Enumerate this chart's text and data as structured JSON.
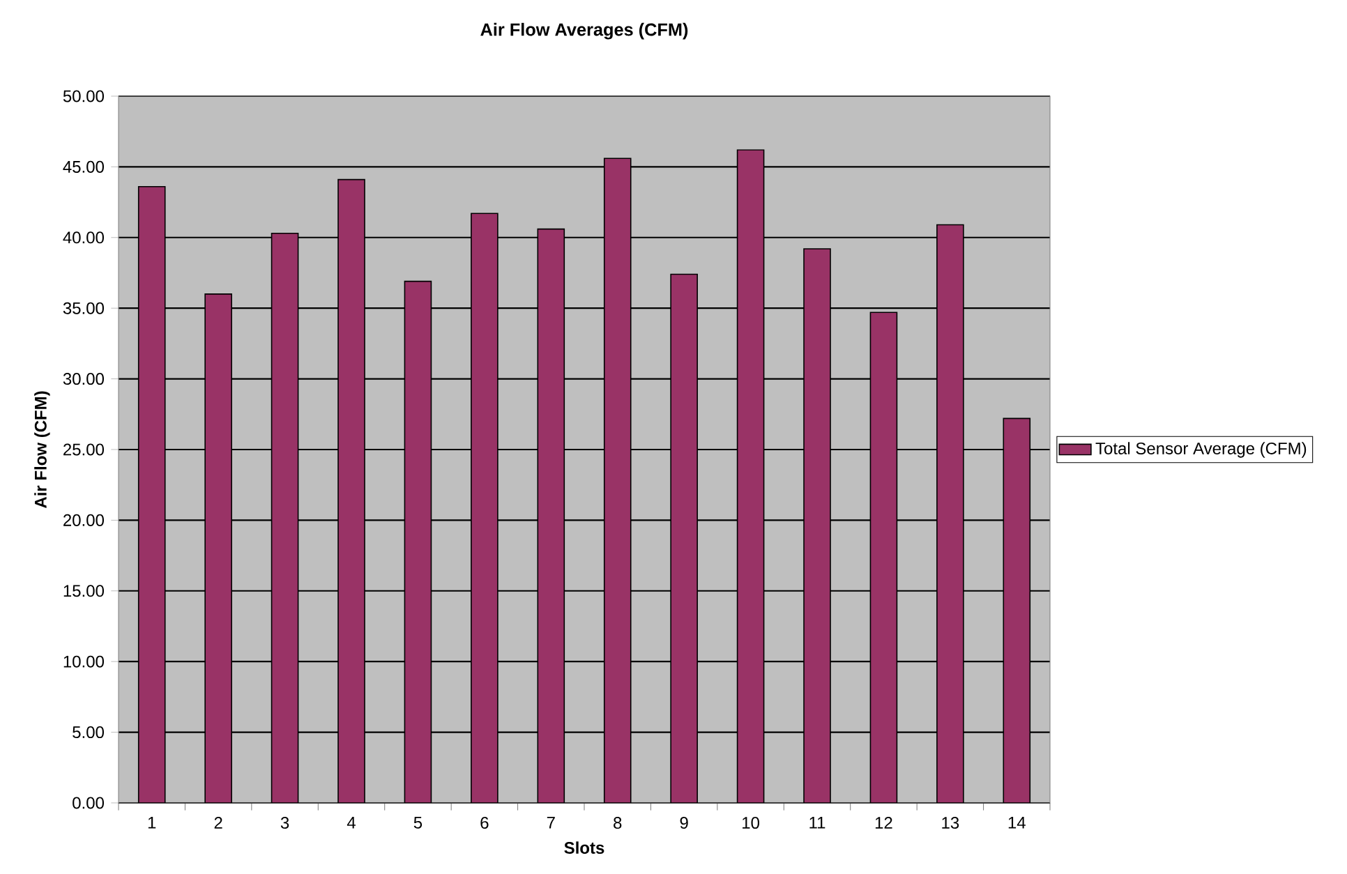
{
  "chart_data": {
    "type": "bar",
    "title": "Air Flow Averages (CFM)",
    "xlabel": "Slots",
    "ylabel": "Air Flow (CFM)",
    "categories": [
      "1",
      "2",
      "3",
      "4",
      "5",
      "6",
      "7",
      "8",
      "9",
      "10",
      "11",
      "12",
      "13",
      "14"
    ],
    "series": [
      {
        "name": "Total Sensor Average (CFM)",
        "color": "#993366",
        "values": [
          43.6,
          36.0,
          40.3,
          44.1,
          36.9,
          41.7,
          40.6,
          45.6,
          37.4,
          46.2,
          39.2,
          34.7,
          40.9,
          27.2
        ]
      }
    ],
    "ylim": [
      0,
      50
    ],
    "yticks": [
      {
        "value": 0,
        "label": "0.00"
      },
      {
        "value": 5,
        "label": "5.00"
      },
      {
        "value": 10,
        "label": "10.00"
      },
      {
        "value": 15,
        "label": "15.00"
      },
      {
        "value": 20,
        "label": "20.00"
      },
      {
        "value": 25,
        "label": "25.00"
      },
      {
        "value": 30,
        "label": "30.00"
      },
      {
        "value": 35,
        "label": "35.00"
      },
      {
        "value": 40,
        "label": "40.00"
      },
      {
        "value": 45,
        "label": "45.00"
      },
      {
        "value": 50,
        "label": "50.00"
      }
    ],
    "grid": "y",
    "legend": "right"
  }
}
